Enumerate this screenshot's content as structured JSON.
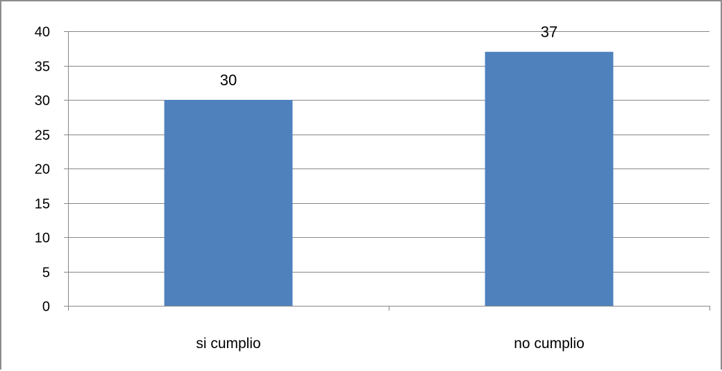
{
  "chart_data": {
    "type": "bar",
    "categories": [
      "si cumplio",
      "no cumplio"
    ],
    "series": [
      {
        "values": [
          30,
          37
        ]
      }
    ],
    "data_labels": [
      "30",
      "37"
    ],
    "yticks": [
      0,
      5,
      10,
      15,
      20,
      25,
      30,
      35,
      40
    ],
    "ytick_labels": [
      "0",
      "5",
      "10",
      "15",
      "20",
      "25",
      "30",
      "35",
      "40"
    ],
    "ylim": [
      0,
      40
    ],
    "grid": true,
    "legend": "none",
    "colors": {
      "bar": "#4f81bd",
      "gridline": "#868686",
      "axis": "#868686"
    }
  }
}
